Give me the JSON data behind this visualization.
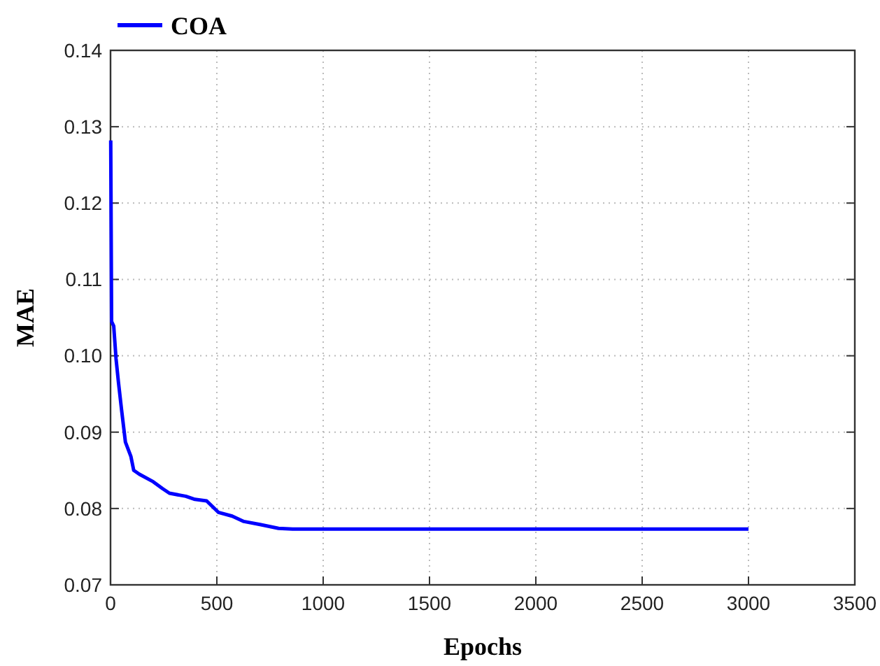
{
  "chart_data": {
    "type": "line",
    "xlabel": "Epochs",
    "ylabel": "MAE",
    "xlim": [
      0,
      3500
    ],
    "ylim": [
      0.07,
      0.14
    ],
    "xticks": [
      0,
      500,
      1000,
      1500,
      2000,
      2500,
      3000,
      3500
    ],
    "yticks": [
      {
        "value": 0.07,
        "label": "0.07"
      },
      {
        "value": 0.08,
        "label": "0.08"
      },
      {
        "value": 0.09,
        "label": "0.09"
      },
      {
        "value": 0.1,
        "label": "0.10"
      },
      {
        "value": 0.11,
        "label": "0.11"
      },
      {
        "value": 0.12,
        "label": "0.12"
      },
      {
        "value": 0.13,
        "label": "0.13"
      },
      {
        "value": 0.14,
        "label": "0.14"
      }
    ],
    "grid": true,
    "legend": "top left",
    "line_style": "solid",
    "marker": "none",
    "series": [
      {
        "name": "COA",
        "color": "#0000ff",
        "x": [
          1,
          5,
          15,
          26,
          37,
          52,
          70,
          96,
          109,
          135,
          201,
          245,
          277,
          354,
          397,
          452,
          507,
          572,
          627,
          703,
          790,
          856,
          1000,
          1500,
          2000,
          2500,
          3000
        ],
        "values": [
          0.1282,
          0.1045,
          0.1039,
          0.0996,
          0.0966,
          0.0929,
          0.0887,
          0.0868,
          0.085,
          0.0845,
          0.0835,
          0.0826,
          0.082,
          0.0816,
          0.0812,
          0.081,
          0.0795,
          0.079,
          0.0783,
          0.0779,
          0.0774,
          0.0773,
          0.0773,
          0.0773,
          0.0773,
          0.0773,
          0.0773
        ]
      }
    ]
  }
}
